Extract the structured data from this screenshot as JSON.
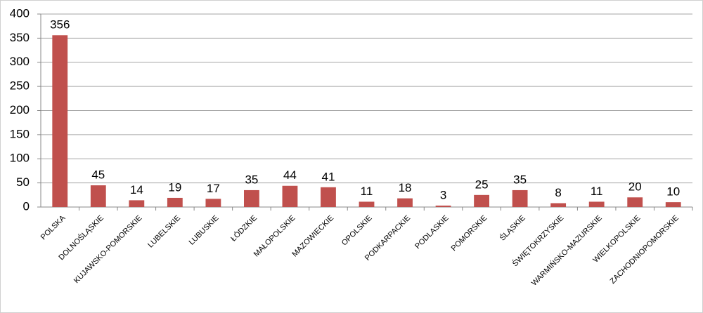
{
  "chart_data": {
    "type": "bar",
    "categories": [
      "POLSKA",
      "DOLNOŚLĄSKIE",
      "KUJAWSKO-POMORSKIE",
      "LUBELSKIE",
      "LUBUSKIE",
      "ŁÓDZKIE",
      "MAŁOPOLSKIE",
      "MAZOWIECKIE",
      "OPOLSKIE",
      "PODKARPACKIE",
      "PODLASKIE",
      "POMORSKIE",
      "ŚLĄSKIE",
      "ŚWIĘTOKRZYSKIE",
      "WARMIŃSKO-MAZURSKIE",
      "WIELKOPOLSKIE",
      "ZACHODNIOPOMORSKIE"
    ],
    "values": [
      356,
      45,
      14,
      19,
      17,
      35,
      44,
      41,
      11,
      18,
      3,
      25,
      35,
      8,
      11,
      20,
      10
    ],
    "color": "#c0504d",
    "ylim": [
      0,
      400
    ],
    "yticks": [
      0,
      50,
      100,
      150,
      200,
      250,
      300,
      350,
      400
    ],
    "grid": true
  }
}
